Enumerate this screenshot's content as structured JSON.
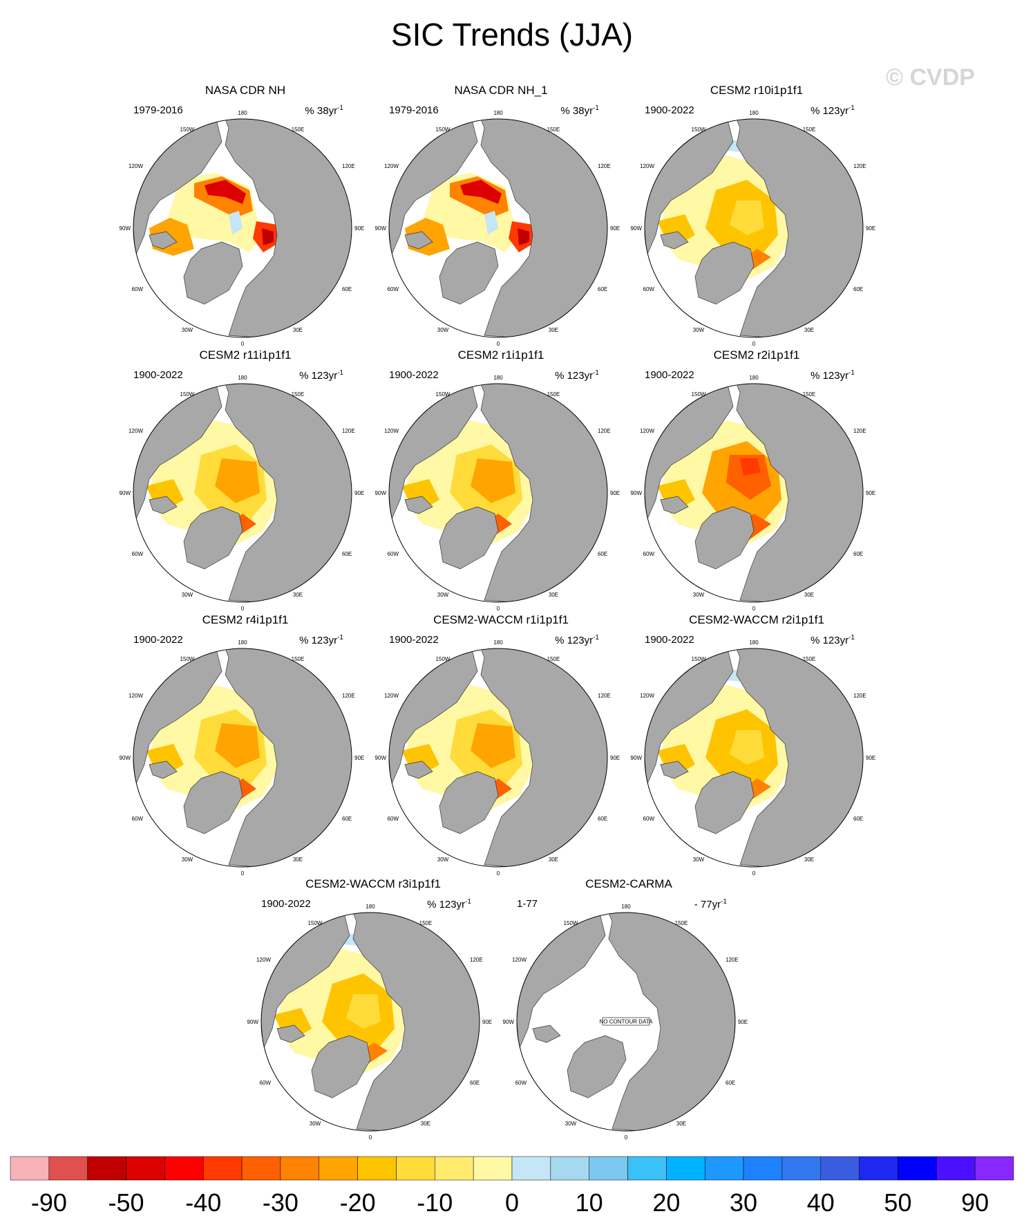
{
  "title": "SIC Trends (JJA)",
  "watermark": "© CVDP",
  "map_labels": [
    "180",
    "150E",
    "120E",
    "90E",
    "60E",
    "30E",
    "0",
    "30W",
    "60W",
    "90W",
    "120W",
    "150W"
  ],
  "no_data_label": "NO CONTOUR DATA",
  "panels": [
    {
      "title": "NASA CDR NH",
      "years": "1979-2016",
      "units_prefix": "% 38yr",
      "units_exp": "-1",
      "pattern": "obs",
      "has_data": true
    },
    {
      "title": "NASA CDR NH_1",
      "years": "1979-2016",
      "units_prefix": "% 38yr",
      "units_exp": "-1",
      "pattern": "obs",
      "has_data": true
    },
    {
      "title": "CESM2 r10i1p1f1",
      "years": "1900-2022",
      "units_prefix": "% 123yr",
      "units_exp": "-1",
      "pattern": "model_light",
      "has_data": true
    },
    {
      "title": "CESM2 r11i1p1f1",
      "years": "1900-2022",
      "units_prefix": "% 123yr",
      "units_exp": "-1",
      "pattern": "model",
      "has_data": true
    },
    {
      "title": "CESM2 r1i1p1f1",
      "years": "1900-2022",
      "units_prefix": "% 123yr",
      "units_exp": "-1",
      "pattern": "model",
      "has_data": true
    },
    {
      "title": "CESM2 r2i1p1f1",
      "years": "1900-2022",
      "units_prefix": "% 123yr",
      "units_exp": "-1",
      "pattern": "model_strong",
      "has_data": true
    },
    {
      "title": "CESM2 r4i1p1f1",
      "years": "1900-2022",
      "units_prefix": "% 123yr",
      "units_exp": "-1",
      "pattern": "model",
      "has_data": true
    },
    {
      "title": "CESM2-WACCM r1i1p1f1",
      "years": "1900-2022",
      "units_prefix": "% 123yr",
      "units_exp": "-1",
      "pattern": "model",
      "has_data": true
    },
    {
      "title": "CESM2-WACCM r2i1p1f1",
      "years": "1900-2022",
      "units_prefix": "% 123yr",
      "units_exp": "-1",
      "pattern": "model_light",
      "has_data": true
    },
    {
      "title": "CESM2-WACCM r3i1p1f1",
      "years": "1900-2022",
      "units_prefix": "% 123yr",
      "units_exp": "-1",
      "pattern": "model_light",
      "has_data": true
    },
    {
      "title": "CESM2-CARMA",
      "years": "1-77",
      "units_prefix": "- 77yr",
      "units_exp": "-1",
      "pattern": "none",
      "has_data": false
    }
  ],
  "colorbar": {
    "colors": [
      "#f8b3b8",
      "#e0504e",
      "#c00000",
      "#dc0000",
      "#ff0000",
      "#ff3a00",
      "#ff6000",
      "#ff8200",
      "#ffa400",
      "#ffc400",
      "#ffdc3a",
      "#ffec6e",
      "#fff8a4",
      "#c4e6f6",
      "#a6d8f0",
      "#7cc8f0",
      "#3cc0f8",
      "#00b2ff",
      "#1e98ff",
      "#1e82ff",
      "#3278f0",
      "#3a5ce0",
      "#1e28f0",
      "#0000ff",
      "#4a10ff",
      "#8828ff"
    ],
    "tick_labels": [
      "-90",
      "-50",
      "-40",
      "-30",
      "-20",
      "-10",
      "0",
      "10",
      "20",
      "30",
      "40",
      "50",
      "90"
    ]
  },
  "chart_data": {
    "type": "heatmap",
    "title": "SIC Trends (JJA)",
    "panels": [
      "NASA CDR NH",
      "NASA CDR NH_1",
      "CESM2 r10i1p1f1",
      "CESM2 r11i1p1f1",
      "CESM2 r1i1p1f1",
      "CESM2 r2i1p1f1",
      "CESM2 r4i1p1f1",
      "CESM2-WACCM r1i1p1f1",
      "CESM2-WACCM r2i1p1f1",
      "CESM2-WACCM r3i1p1f1",
      "CESM2-CARMA"
    ],
    "colorbar_levels": [
      "-90",
      "-50",
      "-40",
      "-30",
      "-20",
      "-10",
      "0",
      "10",
      "20",
      "30",
      "40",
      "50",
      "90"
    ],
    "grid": false,
    "legend_position": "bottom"
  }
}
